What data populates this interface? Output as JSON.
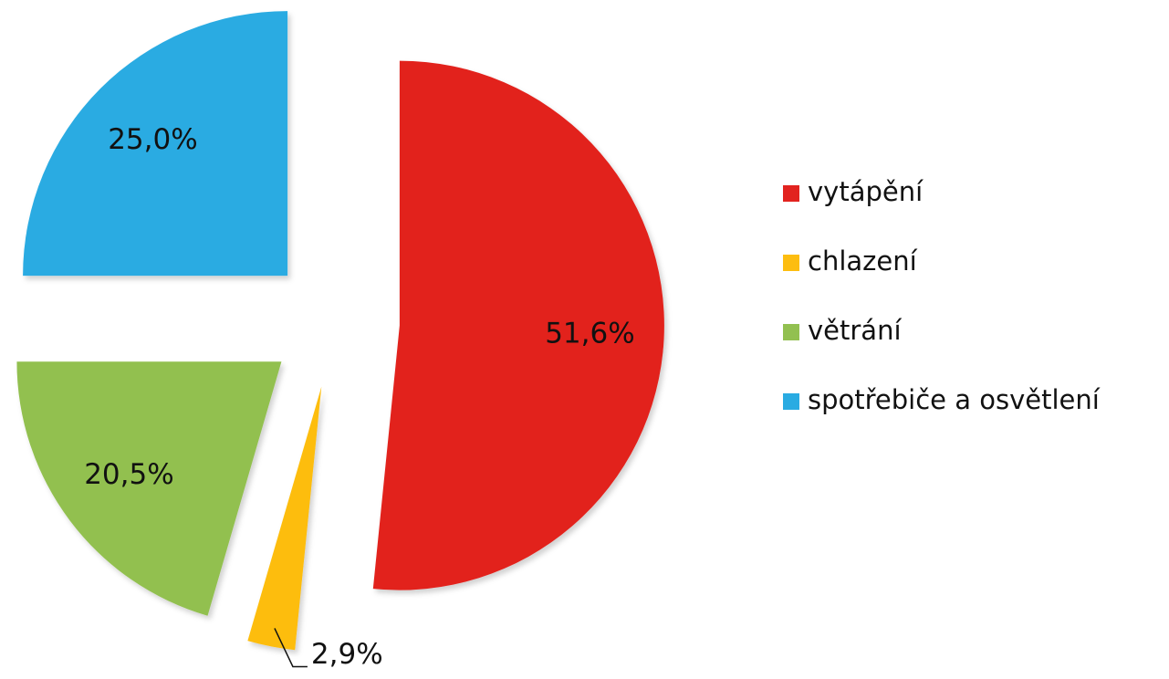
{
  "chart_data": {
    "type": "pie",
    "categories": [
      "vytápění",
      "chlazení",
      "větrání",
      "spotřebiče a osvětlení"
    ],
    "values": [
      51.6,
      2.9,
      20.5,
      25.0
    ],
    "value_labels": [
      "51,6%",
      "2,9%",
      "20,5%",
      "25,0%"
    ],
    "colors": [
      "#e2231f",
      "#fdbd10",
      "#92c050",
      "#29abe2"
    ],
    "legend": "right"
  }
}
